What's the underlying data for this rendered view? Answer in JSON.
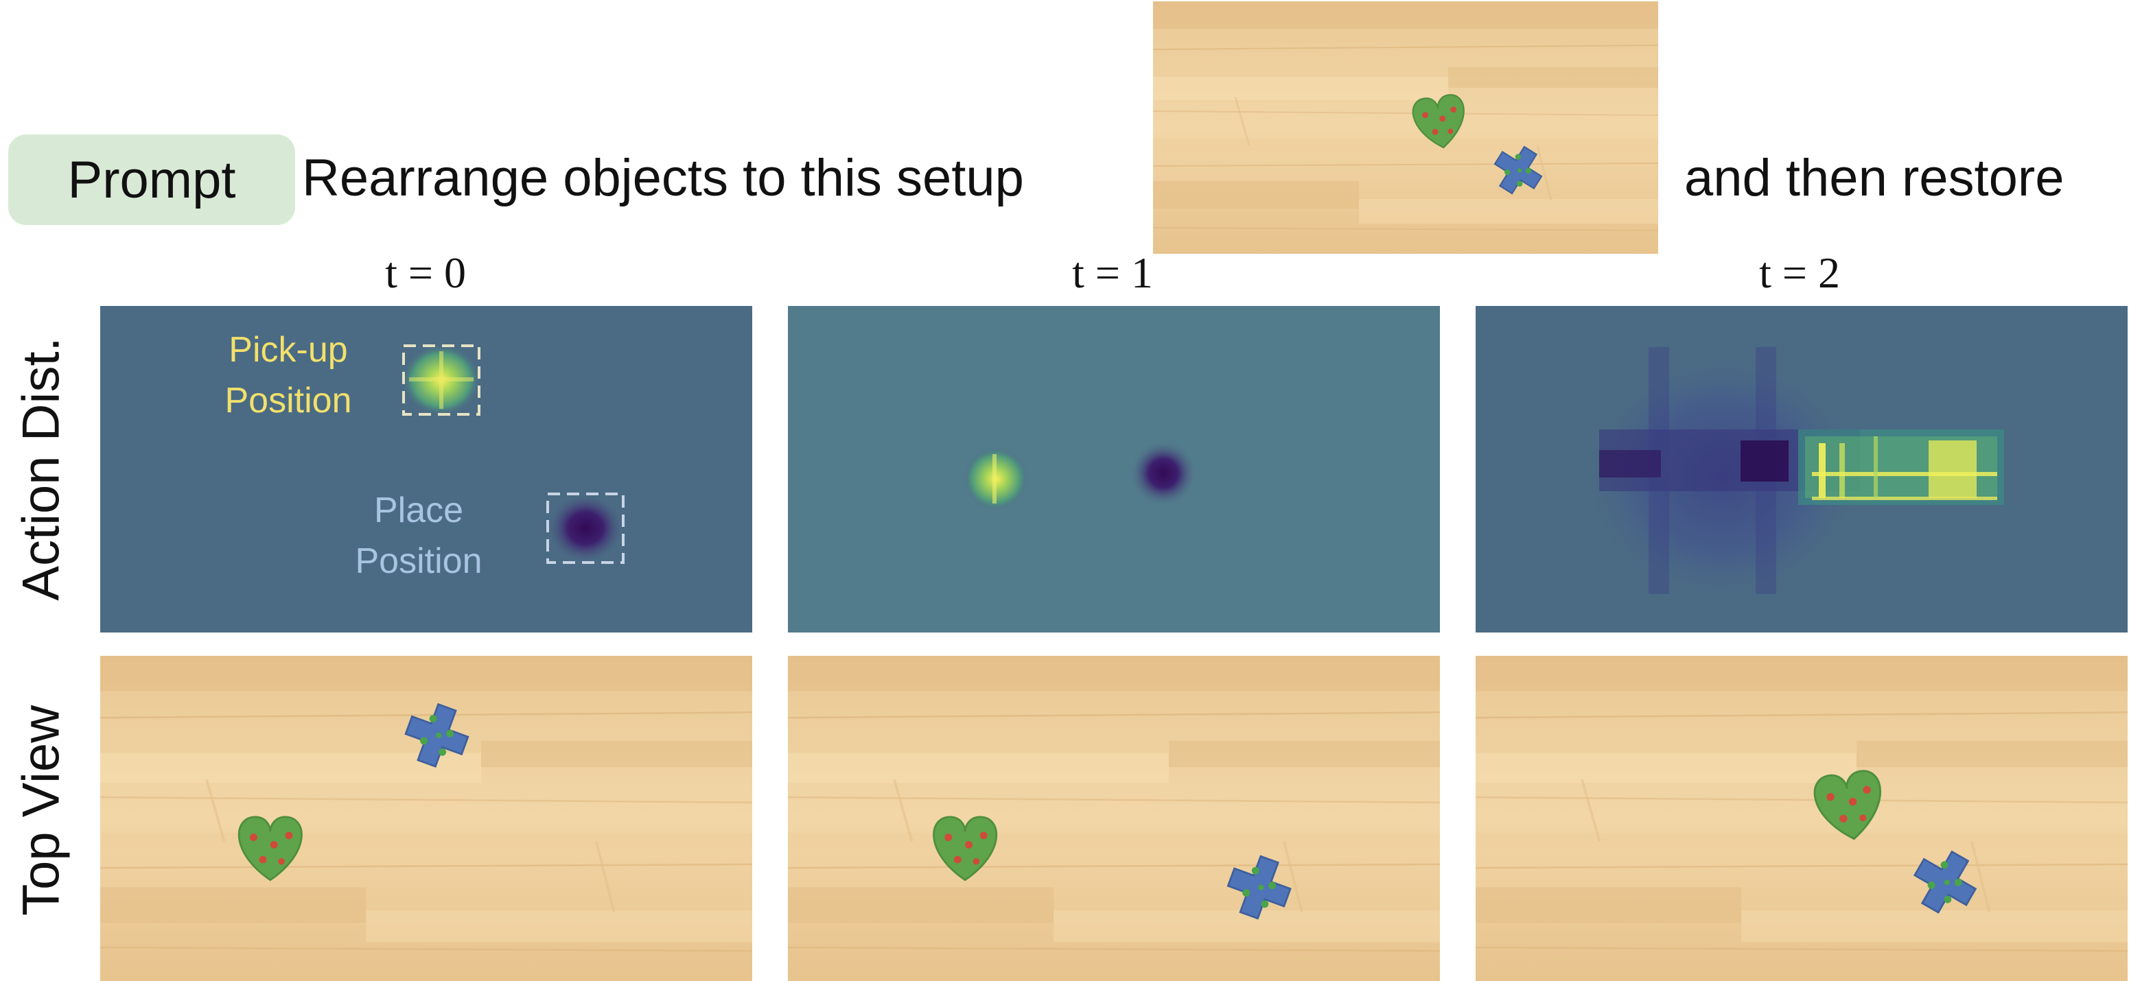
{
  "prompt": {
    "badge": "Prompt",
    "text_before": "Rearrange objects to this setup",
    "text_after": "and then restore"
  },
  "time_labels": [
    "t = 0",
    "t = 1",
    "t = 2"
  ],
  "row_labels": {
    "action": "Action Dist.",
    "top": "Top View"
  },
  "annotations": {
    "pickup_line1": "Pick-up",
    "pickup_line2": "Position",
    "place_line1": "Place",
    "place_line2": "Position"
  },
  "colors": {
    "badge_bg": "#d8ead5",
    "heatmap_bg": "#4b6b84",
    "pickup_label": "#f2e06c",
    "place_label": "#a9c4e2",
    "heart_object": "#5fa34a",
    "cross_object": "#4f74b8"
  },
  "objects": [
    "green heart with red dots",
    "blue cross with green dots"
  ]
}
